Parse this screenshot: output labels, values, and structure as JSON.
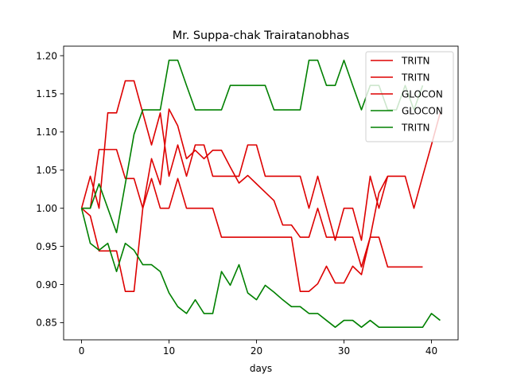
{
  "chart_data": {
    "type": "line",
    "title": "Mr. Suppa-chak Trairatanobhas",
    "xlabel": "days",
    "ylabel": "",
    "xlim": [
      -2.05,
      43.05
    ],
    "ylim": [
      0.8275,
      1.2125
    ],
    "xticks": [
      0,
      10,
      20,
      30,
      40
    ],
    "yticks": [
      0.85,
      0.9,
      0.95,
      1.0,
      1.05,
      1.1,
      1.15,
      1.2
    ],
    "ytick_labels": [
      "0.85",
      "0.90",
      "0.95",
      "1.00",
      "1.05",
      "1.10",
      "1.15",
      "1.20"
    ],
    "legend_position": "top-right",
    "series": [
      {
        "name": "TRITN",
        "color": "#dd0000",
        "x": [
          0,
          1,
          2,
          3,
          4,
          5,
          6,
          7,
          8,
          9,
          10,
          11,
          12,
          13,
          14,
          15,
          16,
          17,
          18,
          19,
          20,
          21,
          22,
          23,
          24,
          25,
          26,
          27,
          28,
          29,
          30,
          31,
          32,
          33,
          34,
          35,
          36,
          37,
          38,
          39,
          40,
          41
        ],
        "values": [
          1.0,
          1.042,
          1.0,
          1.125,
          1.125,
          1.167,
          1.167,
          1.125,
          1.083,
          1.125,
          1.042,
          1.083,
          1.042,
          1.083,
          1.083,
          1.042,
          1.042,
          1.042,
          1.042,
          1.083,
          1.083,
          1.042,
          1.042,
          1.042,
          1.042,
          1.042,
          1.0,
          1.042,
          1.0,
          0.958,
          1.0,
          1.0,
          0.958,
          1.042,
          1.0,
          1.042,
          1.042,
          1.042,
          1.0,
          1.042,
          1.083,
          1.125
        ]
      },
      {
        "name": "TRITN",
        "color": "#dd0000",
        "x": [
          0,
          1,
          2,
          3,
          4,
          5,
          6,
          7,
          8,
          9,
          10,
          11,
          12,
          13,
          14,
          15,
          16,
          17,
          18,
          19,
          20,
          21,
          22,
          23,
          24,
          25,
          26,
          27,
          28,
          29,
          30,
          31,
          32,
          33,
          34,
          35
        ],
        "values": [
          1.0,
          0.99,
          0.944,
          0.944,
          0.944,
          0.891,
          0.891,
          1.0,
          1.039,
          1.0,
          1.0,
          1.039,
          1.0,
          1.0,
          1.0,
          1.0,
          0.962,
          0.962,
          0.962,
          0.962,
          0.962,
          0.962,
          0.962,
          0.962,
          0.962,
          0.891,
          0.891,
          0.901,
          0.924,
          0.902,
          0.902,
          0.924,
          0.913,
          0.962,
          1.02,
          1.042
        ]
      },
      {
        "name": "GLOCON",
        "color": "#dd0000",
        "x": [
          0,
          1,
          2,
          3,
          4,
          5,
          6,
          7,
          8,
          9,
          10,
          11,
          12,
          13,
          14,
          15,
          16,
          17,
          18,
          19,
          20,
          21,
          22,
          23,
          24,
          25,
          26,
          27,
          28,
          29,
          30,
          31,
          32,
          33,
          34,
          35,
          36,
          37,
          38,
          39
        ],
        "values": [
          1.0,
          1.0,
          1.077,
          1.077,
          1.077,
          1.039,
          1.039,
          1.0,
          1.065,
          1.031,
          1.13,
          1.108,
          1.065,
          1.076,
          1.065,
          1.076,
          1.076,
          1.054,
          1.033,
          1.043,
          1.032,
          1.021,
          1.01,
          0.978,
          0.978,
          0.962,
          0.962,
          1.0,
          0.962,
          0.962,
          0.962,
          0.962,
          0.923,
          0.962,
          0.962,
          0.923,
          0.923,
          0.923,
          0.923,
          0.923
        ]
      },
      {
        "name": "GLOCON",
        "color": "#008000",
        "x": [
          0,
          1,
          2,
          3,
          4,
          5,
          6,
          7,
          8,
          9,
          10,
          11,
          12,
          13,
          14,
          15,
          16,
          17,
          18,
          19,
          20,
          21,
          22,
          23,
          24,
          25,
          26,
          27,
          28,
          29,
          30,
          31,
          32,
          33,
          34,
          35,
          36,
          37,
          38,
          39
        ],
        "values": [
          1.0,
          1.0,
          1.032,
          1.0,
          0.968,
          1.032,
          1.097,
          1.129,
          1.129,
          1.129,
          1.194,
          1.194,
          1.161,
          1.129,
          1.129,
          1.129,
          1.129,
          1.161,
          1.161,
          1.161,
          1.161,
          1.161,
          1.129,
          1.129,
          1.129,
          1.129,
          1.194,
          1.194,
          1.161,
          1.161,
          1.194,
          1.161,
          1.129,
          1.161,
          1.161,
          1.129,
          1.129,
          1.161,
          1.129,
          1.161
        ]
      },
      {
        "name": "TRITN",
        "color": "#008000",
        "x": [
          0,
          1,
          2,
          3,
          4,
          5,
          6,
          7,
          8,
          9,
          10,
          11,
          12,
          13,
          14,
          15,
          16,
          17,
          18,
          19,
          20,
          21,
          22,
          23,
          24,
          25,
          26,
          27,
          28,
          29,
          30,
          31,
          32,
          33,
          34,
          35,
          36,
          37,
          38,
          39,
          40,
          41
        ],
        "values": [
          1.0,
          0.954,
          0.945,
          0.954,
          0.917,
          0.954,
          0.945,
          0.926,
          0.926,
          0.917,
          0.889,
          0.871,
          0.862,
          0.88,
          0.862,
          0.862,
          0.917,
          0.899,
          0.926,
          0.889,
          0.88,
          0.899,
          0.89,
          0.88,
          0.871,
          0.871,
          0.862,
          0.862,
          0.853,
          0.844,
          0.853,
          0.853,
          0.844,
          0.853,
          0.844,
          0.844,
          0.844,
          0.844,
          0.844,
          0.844,
          0.862,
          0.853
        ]
      }
    ]
  }
}
